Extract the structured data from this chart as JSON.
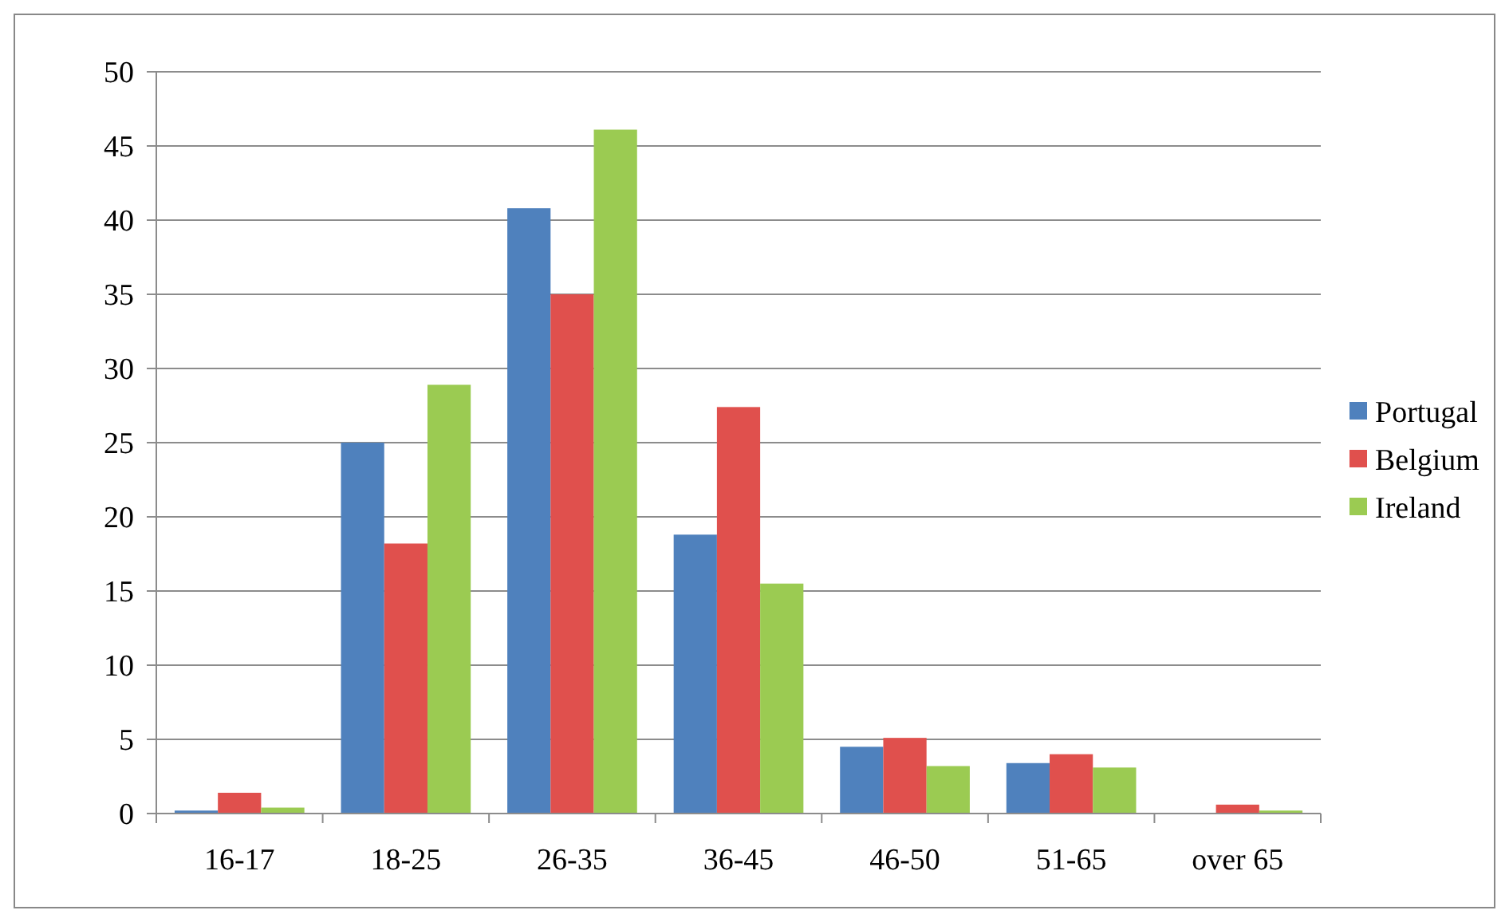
{
  "chart_data": {
    "type": "bar",
    "categories": [
      "16-17",
      "18-25",
      "26-35",
      "36-45",
      "46-50",
      "51-65",
      "over 65"
    ],
    "series": [
      {
        "name": "Portugal",
        "color": "#4f81bd",
        "values": [
          0.2,
          25,
          40.8,
          18.8,
          4.5,
          3.4,
          0
        ]
      },
      {
        "name": "Belgium",
        "color": "#e0504d",
        "values": [
          1.4,
          18.2,
          35,
          27.4,
          5.1,
          4.0,
          0.6
        ]
      },
      {
        "name": "Ireland",
        "color": "#9bcb52",
        "values": [
          0.4,
          28.9,
          46.1,
          15.5,
          3.2,
          3.1,
          0.2
        ]
      }
    ],
    "ylim": [
      0,
      50
    ],
    "yticks": [
      0,
      5,
      10,
      15,
      20,
      25,
      30,
      35,
      40,
      45,
      50
    ],
    "grid": "y",
    "legend": "right"
  }
}
